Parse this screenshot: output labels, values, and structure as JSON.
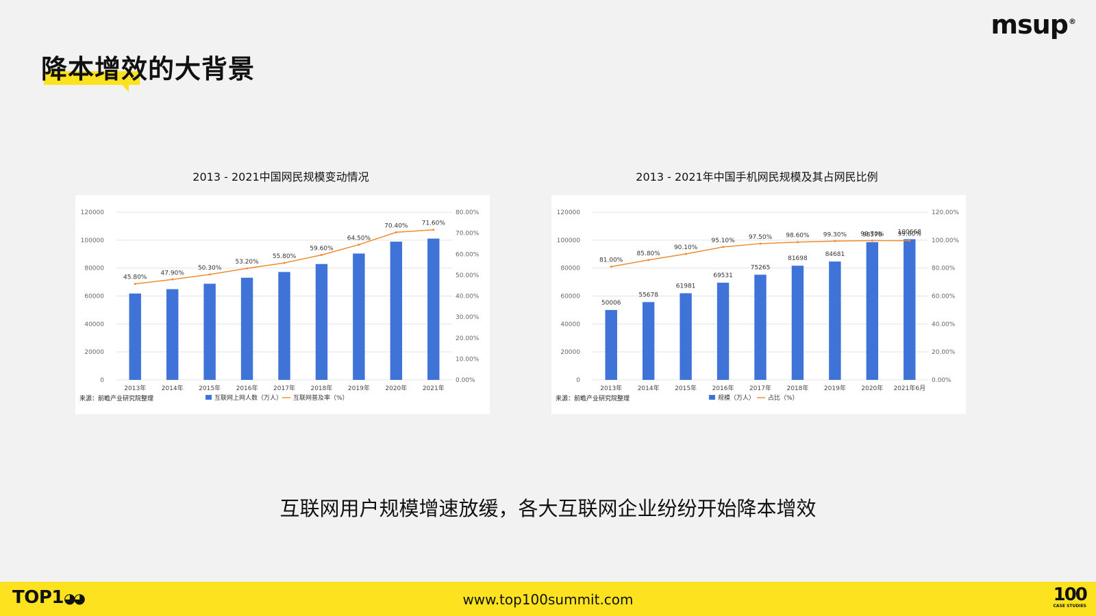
{
  "brand": {
    "logo": "msup",
    "reg": "®"
  },
  "page_title": "降本增效的大背景",
  "summary": "互联网用户规模增速放缓，各大互联网企业纷纷开始降本增效",
  "footer": {
    "logo": "TOP1",
    "url": "www.top100summit.com",
    "right_big": "100",
    "right_small": "CASE STUDIES"
  },
  "colors": {
    "bar": "#3f73d8",
    "line": "#f28a30",
    "accent": "#fde21f"
  },
  "chart_data": [
    {
      "type": "bar",
      "title": "2013 - 2021中国网民规模变动情况",
      "categories": [
        "2013年",
        "2014年",
        "2015年",
        "2016年",
        "2017年",
        "2018年",
        "2019年",
        "2020年",
        "2021年"
      ],
      "series": [
        {
          "name": "互联网上网人数（万人）",
          "type": "bar",
          "axis": "left",
          "values": [
            61800,
            64900,
            68800,
            73100,
            77200,
            82900,
            90400,
            98900,
            101100
          ]
        },
        {
          "name": "互联网普及率（%）",
          "type": "line",
          "axis": "right",
          "values": [
            45.8,
            47.9,
            50.3,
            53.2,
            55.8,
            59.6,
            64.5,
            70.4,
            71.6
          ],
          "labels": [
            "45.80%",
            "47.90%",
            "50.30%",
            "53.20%",
            "55.80%",
            "59.60%",
            "64.50%",
            "70.40%",
            "71.60%"
          ]
        }
      ],
      "ylim": [
        0,
        120000
      ],
      "yticks": [
        "0",
        "20000",
        "40000",
        "60000",
        "80000",
        "100000",
        "120000"
      ],
      "y2lim": [
        0,
        80
      ],
      "y2ticks": [
        "0.00%",
        "10.00%",
        "20.00%",
        "30.00%",
        "40.00%",
        "50.00%",
        "60.00%",
        "70.00%",
        "80.00%"
      ],
      "source": "来源：前瞻产业研究院整理",
      "grid": true,
      "legend": "bottom"
    },
    {
      "type": "bar",
      "title": "2013 - 2021年中国手机网民规模及其占网民比例",
      "categories": [
        "2013年",
        "2014年",
        "2015年",
        "2016年",
        "2017年",
        "2018年",
        "2019年",
        "2020年",
        "2021年6月"
      ],
      "series": [
        {
          "name": "规模（万人）",
          "type": "bar",
          "axis": "left",
          "values": [
            50006,
            55678,
            61981,
            69531,
            75265,
            81698,
            84681,
            98576,
            100668
          ],
          "labels": [
            "50006",
            "55678",
            "61981",
            "69531",
            "75265",
            "81698",
            "84681",
            "98576",
            "100668"
          ]
        },
        {
          "name": "占比（%）",
          "type": "line",
          "axis": "right",
          "values": [
            81.0,
            85.8,
            90.1,
            95.1,
            97.5,
            98.6,
            99.3,
            99.7,
            99.6
          ],
          "labels": [
            "81.00%",
            "85.80%",
            "90.10%",
            "95.10%",
            "97.50%",
            "98.60%",
            "99.30%",
            "99.70%",
            "99.60%"
          ]
        }
      ],
      "ylim": [
        0,
        120000
      ],
      "yticks": [
        "0",
        "20000",
        "40000",
        "60000",
        "80000",
        "100000",
        "120000"
      ],
      "y2lim": [
        0,
        120
      ],
      "y2ticks": [
        "0.00%",
        "20.00%",
        "40.00%",
        "60.00%",
        "80.00%",
        "100.00%",
        "120.00%"
      ],
      "source": "来源：前瞻产业研究院整理",
      "grid": true,
      "legend": "bottom"
    }
  ]
}
